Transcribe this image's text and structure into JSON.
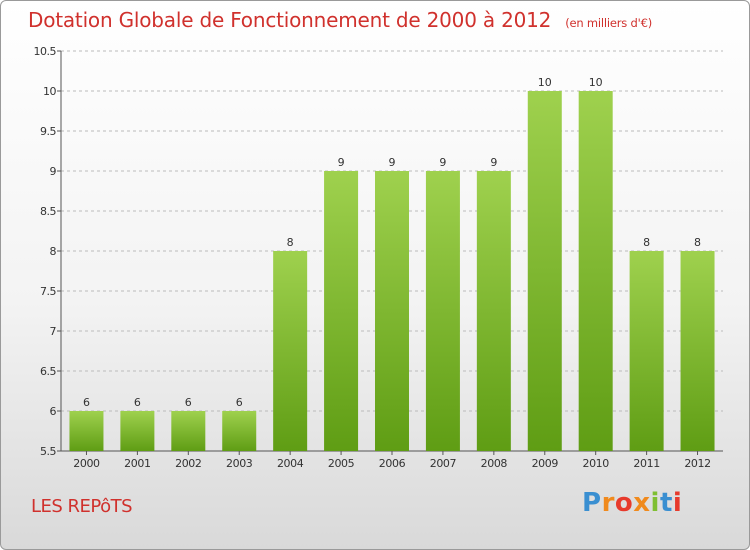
{
  "title": "Dotation Globale de Fonctionnement de 2000 à 2012",
  "unit_note": "(en milliers d'€)",
  "commune": "LES REPôTS",
  "logo_text": "Proxiti",
  "colors": {
    "title": "#d0312d",
    "bar_light": "#9fd14e",
    "bar_dark": "#5f9d14",
    "grid": "#bbbbbb"
  },
  "chart_data": {
    "type": "bar",
    "title": "Dotation Globale de Fonctionnement de 2000 à 2012",
    "subtitle": "(en milliers d'€)",
    "xlabel": "",
    "ylabel": "",
    "categories": [
      "2000",
      "2001",
      "2002",
      "2003",
      "2004",
      "2005",
      "2006",
      "2007",
      "2008",
      "2009",
      "2010",
      "2011",
      "2012"
    ],
    "values": [
      6,
      6,
      6,
      6,
      8,
      9,
      9,
      9,
      9,
      10,
      10,
      8,
      8
    ],
    "ylim": [
      5.5,
      10.5
    ],
    "yticks": [
      5.5,
      6,
      6.5,
      7,
      7.5,
      8,
      8.5,
      9,
      9.5,
      10,
      10.5
    ],
    "grid": true,
    "data_labels": true
  }
}
